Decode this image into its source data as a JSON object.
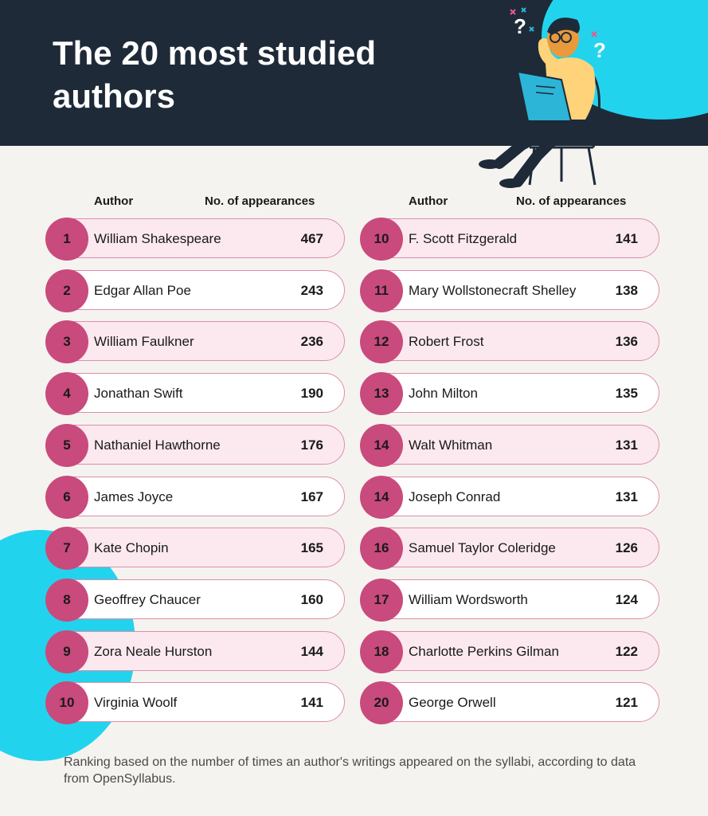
{
  "title": "The 20 most studied authors",
  "columns": {
    "author": "Author",
    "appearances": "No. of appearances"
  },
  "chart_data": {
    "type": "table",
    "title": "The 20 most studied authors",
    "columns": [
      "Author",
      "No. of appearances"
    ],
    "rows": [
      {
        "rank": "1",
        "author": "William Shakespeare",
        "value": 467
      },
      {
        "rank": "2",
        "author": "Edgar Allan Poe",
        "value": 243
      },
      {
        "rank": "3",
        "author": "William Faulkner",
        "value": 236
      },
      {
        "rank": "4",
        "author": "Jonathan Swift",
        "value": 190
      },
      {
        "rank": "5",
        "author": "Nathaniel Hawthorne",
        "value": 176
      },
      {
        "rank": "6",
        "author": "James Joyce",
        "value": 167
      },
      {
        "rank": "7",
        "author": "Kate Chopin",
        "value": 165
      },
      {
        "rank": "8",
        "author": "Geoffrey Chaucer",
        "value": 160
      },
      {
        "rank": "9",
        "author": "Zora Neale Hurston",
        "value": 144
      },
      {
        "rank": "10",
        "author": "Virginia Woolf",
        "value": 141
      },
      {
        "rank": "10",
        "author": "F. Scott Fitzgerald",
        "value": 141
      },
      {
        "rank": "11",
        "author": "Mary Wollstonecraft Shelley",
        "value": 138
      },
      {
        "rank": "12",
        "author": "Robert Frost",
        "value": 136
      },
      {
        "rank": "13",
        "author": "John Milton",
        "value": 135
      },
      {
        "rank": "14",
        "author": "Walt Whitman",
        "value": 131
      },
      {
        "rank": "14",
        "author": "Joseph Conrad",
        "value": 131
      },
      {
        "rank": "16",
        "author": "Samuel Taylor Coleridge",
        "value": 126
      },
      {
        "rank": "17",
        "author": "William Wordsworth",
        "value": 124
      },
      {
        "rank": "18",
        "author": "Charlotte Perkins Gilman",
        "value": 122
      },
      {
        "rank": "20",
        "author": "George Orwell",
        "value": 121
      }
    ]
  },
  "footnote": "Ranking based on the number of times an author's writings appeared on the syllabi, according to data from OpenSyllabus.",
  "colors": {
    "header_bg": "#1e2a38",
    "accent_cyan": "#22d3ee",
    "rank_circle": "#c94a7c",
    "row_tint": "#fbe9ef",
    "row_border": "#e08cac",
    "page_bg": "#f5f3ef"
  },
  "illustration": {
    "icons": [
      "reading-person-icon",
      "question-mark-icon",
      "chair-icon"
    ],
    "glyphs": [
      "?",
      "?"
    ]
  }
}
